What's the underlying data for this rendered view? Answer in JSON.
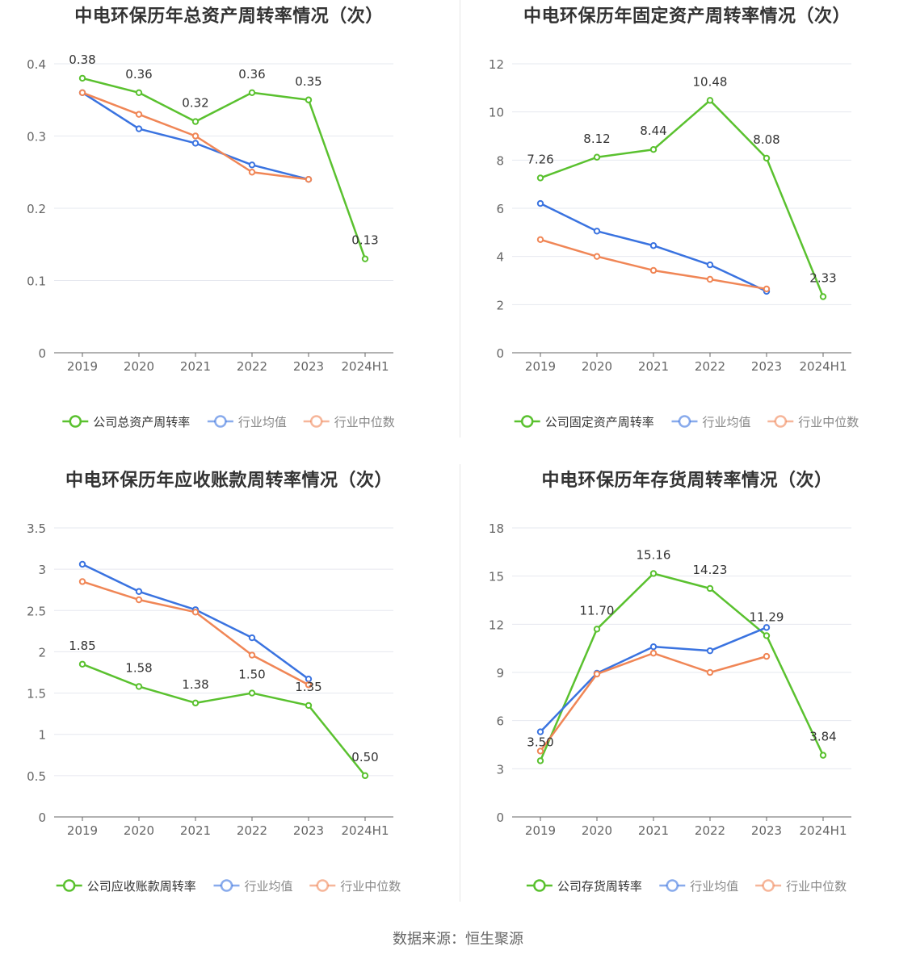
{
  "source": "数据来源：恒生聚源",
  "colors": {
    "company": "#5ac12f",
    "avg": "#3a73e0",
    "median": "#f08656",
    "grid": "#e6e8ef",
    "axis": "#666666",
    "text": "#333333"
  },
  "chart_data": [
    {
      "type": "line",
      "title": "中电环保历年总资产周转率情况（次）",
      "categories": [
        "2019",
        "2020",
        "2021",
        "2022",
        "2023",
        "2024H1"
      ],
      "ylim": [
        0,
        0.4
      ],
      "yticks": [
        "0",
        "0.1",
        "0.2",
        "0.3",
        "0.4"
      ],
      "series": [
        {
          "name": "公司总资产周转率",
          "key": "company",
          "values": [
            0.38,
            0.36,
            0.32,
            0.36,
            0.35,
            0.13
          ],
          "labels": [
            "0.38",
            "0.36",
            "0.32",
            "0.36",
            "0.35",
            "0.13"
          ]
        },
        {
          "name": "行业均值",
          "key": "avg",
          "values": [
            0.36,
            0.31,
            0.29,
            0.26,
            0.24,
            null
          ]
        },
        {
          "name": "行业中位数",
          "key": "median",
          "values": [
            0.36,
            0.33,
            0.3,
            0.25,
            0.24,
            null
          ]
        }
      ]
    },
    {
      "type": "line",
      "title": "中电环保历年固定资产周转率情况（次）",
      "categories": [
        "2019",
        "2020",
        "2021",
        "2022",
        "2023",
        "2024H1"
      ],
      "ylim": [
        0,
        12
      ],
      "yticks": [
        "0",
        "2",
        "4",
        "6",
        "8",
        "10",
        "12"
      ],
      "series": [
        {
          "name": "公司固定资产周转率",
          "key": "company",
          "values": [
            7.26,
            8.12,
            8.44,
            10.48,
            8.08,
            2.33
          ],
          "labels": [
            "7.26",
            "8.12",
            "8.44",
            "10.48",
            "8.08",
            "2.33"
          ]
        },
        {
          "name": "行业均值",
          "key": "avg",
          "values": [
            6.2,
            5.05,
            4.45,
            3.65,
            2.55,
            null
          ]
        },
        {
          "name": "行业中位数",
          "key": "median",
          "values": [
            4.7,
            4.0,
            3.42,
            3.05,
            2.65,
            null
          ]
        }
      ]
    },
    {
      "type": "line",
      "title": "中电环保历年应收账款周转率情况（次）",
      "categories": [
        "2019",
        "2020",
        "2021",
        "2022",
        "2023",
        "2024H1"
      ],
      "ylim": [
        0,
        3.5
      ],
      "yticks": [
        "0",
        "0.5",
        "1",
        "1.5",
        "2",
        "2.5",
        "3",
        "3.5"
      ],
      "series": [
        {
          "name": "公司应收账款周转率",
          "key": "company",
          "values": [
            1.85,
            1.58,
            1.38,
            1.5,
            1.35,
            0.5
          ],
          "labels": [
            "1.85",
            "1.58",
            "1.38",
            "1.50",
            "1.35",
            "0.50"
          ]
        },
        {
          "name": "行业均值",
          "key": "avg",
          "values": [
            3.06,
            2.73,
            2.51,
            2.17,
            1.67,
            null
          ]
        },
        {
          "name": "行业中位数",
          "key": "median",
          "values": [
            2.85,
            2.63,
            2.48,
            1.96,
            1.6,
            null
          ]
        }
      ]
    },
    {
      "type": "line",
      "title": "中电环保历年存货周转率情况（次）",
      "categories": [
        "2019",
        "2020",
        "2021",
        "2022",
        "2023",
        "2024H1"
      ],
      "ylim": [
        0,
        18
      ],
      "yticks": [
        "0",
        "3",
        "6",
        "9",
        "12",
        "15",
        "18"
      ],
      "series": [
        {
          "name": "公司存货周转率",
          "key": "company",
          "values": [
            3.5,
            11.7,
            15.16,
            14.23,
            11.29,
            3.84
          ],
          "labels": [
            "3.50",
            "11.70",
            "15.16",
            "14.23",
            "11.29",
            "3.84"
          ]
        },
        {
          "name": "行业均值",
          "key": "avg",
          "values": [
            5.3,
            8.95,
            10.6,
            10.35,
            11.8,
            null
          ]
        },
        {
          "name": "行业中位数",
          "key": "median",
          "values": [
            4.1,
            8.9,
            10.2,
            9.0,
            10.0,
            null
          ]
        }
      ]
    }
  ]
}
